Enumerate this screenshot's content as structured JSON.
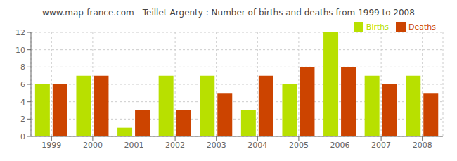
{
  "chart_data": {
    "type": "bar",
    "title": "www.map-france.com - Teillet-Argenty : Number of births and deaths from 1999 to 2008",
    "categories": [
      "1999",
      "2000",
      "2001",
      "2002",
      "2003",
      "2004",
      "2005",
      "2006",
      "2007",
      "2008"
    ],
    "series": [
      {
        "name": "Births",
        "color": "#b8e000",
        "values": [
          6,
          7,
          1,
          7,
          7,
          3,
          6,
          12,
          7,
          7
        ]
      },
      {
        "name": "Deaths",
        "color": "#cc4400",
        "values": [
          6,
          7,
          3,
          3,
          5,
          7,
          8,
          8,
          6,
          5
        ]
      }
    ],
    "ylim": [
      0,
      12
    ],
    "yticks": [
      0,
      2,
      4,
      6,
      8,
      10,
      12
    ],
    "grid": true,
    "legend": "upper right"
  }
}
